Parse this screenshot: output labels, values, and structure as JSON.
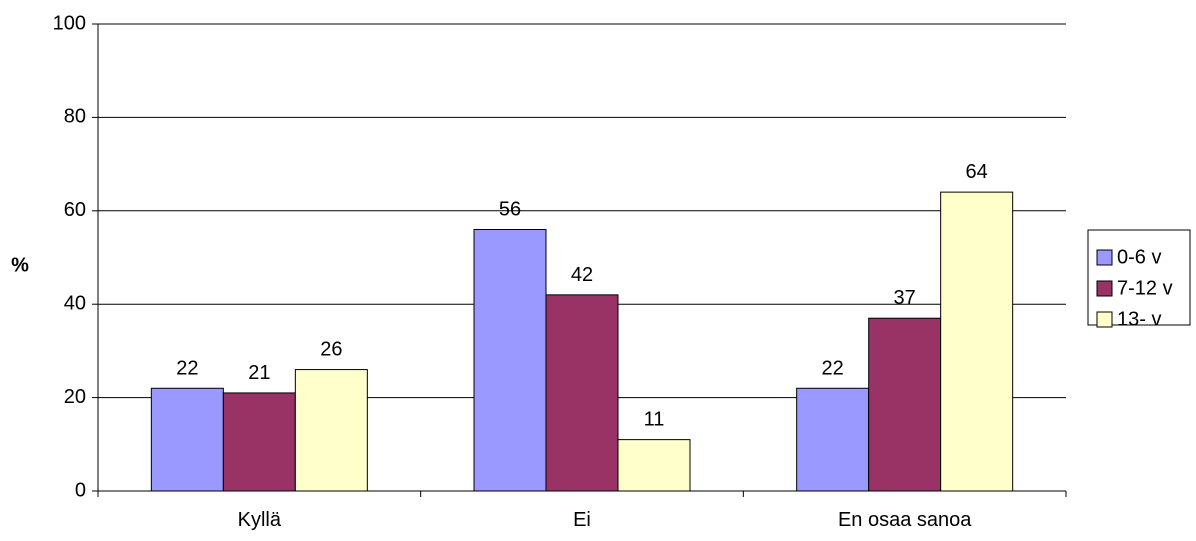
{
  "chart_data": {
    "type": "bar",
    "categories": [
      "Kyllä",
      "Ei",
      "En osaa sanoa"
    ],
    "series": [
      {
        "name": "0-6 v",
        "values": [
          22,
          56,
          22
        ],
        "color": "#9999FF"
      },
      {
        "name": "7-12 v",
        "values": [
          21,
          42,
          37
        ],
        "color": "#993366"
      },
      {
        "name": "13- v",
        "values": [
          26,
          11,
          64
        ],
        "color": "#FFFFCC"
      }
    ],
    "data_labels": [
      [
        "22",
        "56",
        "22"
      ],
      [
        "21",
        "42",
        "37"
      ],
      [
        "26",
        "11",
        "64"
      ]
    ],
    "ylabel": "%",
    "ylim": [
      0,
      100
    ],
    "yticks": [
      0,
      20,
      40,
      60,
      80,
      100
    ],
    "grid": true,
    "legend": "right"
  }
}
